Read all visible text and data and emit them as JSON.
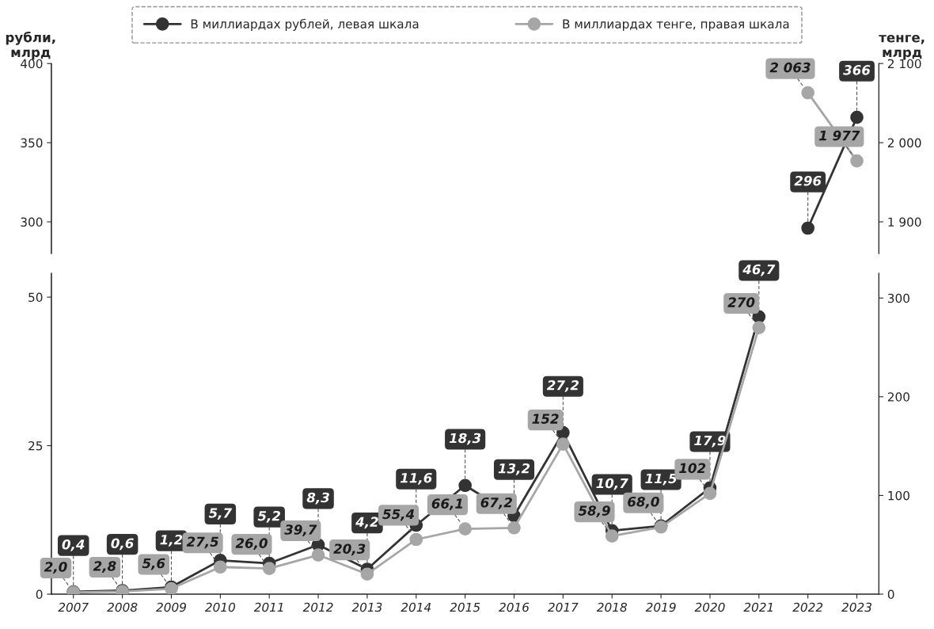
{
  "chart_data": [
    {
      "type": "line",
      "ylabel": "рубли,\nмлрд",
      "y2label": "тенге,\nмлрд",
      "categories": [
        "2007",
        "2008",
        "2009",
        "2010",
        "2011",
        "2012",
        "2013",
        "2014",
        "2015",
        "2016",
        "2017",
        "2018",
        "2019",
        "2020",
        "2021",
        "2022",
        "2023"
      ],
      "ylim": [
        280,
        400
      ],
      "yticks": [
        300,
        350,
        400
      ],
      "y2lim": [
        1860,
        2100
      ],
      "y2ticks": [
        {
          "value": 1900,
          "label": "1 900"
        },
        {
          "value": 2000,
          "label": "2 000"
        },
        {
          "value": 2100,
          "label": "2 100"
        }
      ],
      "tick_labels": "y",
      "legend": "top",
      "marker": "circle",
      "grid": false,
      "series": [
        {
          "name": "В миллиардах рублей, левая шкала",
          "color": "#333333",
          "values": [
            null,
            null,
            null,
            null,
            null,
            null,
            null,
            null,
            null,
            null,
            null,
            null,
            null,
            null,
            null,
            296,
            366
          ],
          "value_labels": [
            null,
            null,
            null,
            null,
            null,
            null,
            null,
            null,
            null,
            null,
            null,
            null,
            null,
            null,
            null,
            "296",
            "366"
          ]
        },
        {
          "name": "В миллиардах тенге, правая шкала",
          "color": "#a6a6a6",
          "axis": "y2",
          "values": [
            null,
            null,
            null,
            null,
            null,
            null,
            null,
            null,
            null,
            null,
            null,
            null,
            null,
            null,
            null,
            2063,
            1977
          ],
          "value_labels": [
            null,
            null,
            null,
            null,
            null,
            null,
            null,
            null,
            null,
            null,
            null,
            null,
            null,
            null,
            null,
            "2 063",
            "1 977"
          ]
        }
      ]
    },
    {
      "type": "line",
      "categories": [
        "2007",
        "2008",
        "2009",
        "2010",
        "2011",
        "2012",
        "2013",
        "2014",
        "2015",
        "2016",
        "2017",
        "2018",
        "2019",
        "2020",
        "2021",
        "2022",
        "2023"
      ],
      "ylim": [
        0,
        54
      ],
      "yticks": [
        0,
        25,
        50
      ],
      "y2lim": [
        0,
        325
      ],
      "y2ticks": [
        0,
        100,
        200,
        300
      ],
      "marker": "circle",
      "grid": false,
      "series": [
        {
          "color": "#333333",
          "values": [
            0.4,
            0.6,
            1.2,
            5.7,
            5.2,
            8.3,
            4.2,
            11.6,
            18.3,
            13.2,
            27.2,
            10.7,
            11.5,
            17.9,
            46.7,
            null,
            null
          ],
          "value_labels": [
            "0,4",
            "0,6",
            "1,2",
            "5,7",
            "5,2",
            "8,3",
            "4,2",
            "11,6",
            "18,3",
            "13,2",
            "27,2",
            "10,7",
            "11,5",
            "17,9",
            "46,7",
            null,
            null
          ]
        },
        {
          "color": "#a6a6a6",
          "axis": "y2",
          "values": [
            2.0,
            2.8,
            5.6,
            27.5,
            26.0,
            39.7,
            20.3,
            55.4,
            66.1,
            67.2,
            152,
            58.9,
            68.0,
            102,
            270,
            null,
            null
          ],
          "value_labels": [
            "2,0",
            "2,8",
            "5,6",
            "27,5",
            "26,0",
            "39,7",
            "20,3",
            "55,4",
            "66,1",
            "67,2",
            "152",
            "58,9",
            "68,0",
            "102",
            "270",
            null,
            null
          ]
        }
      ]
    }
  ]
}
